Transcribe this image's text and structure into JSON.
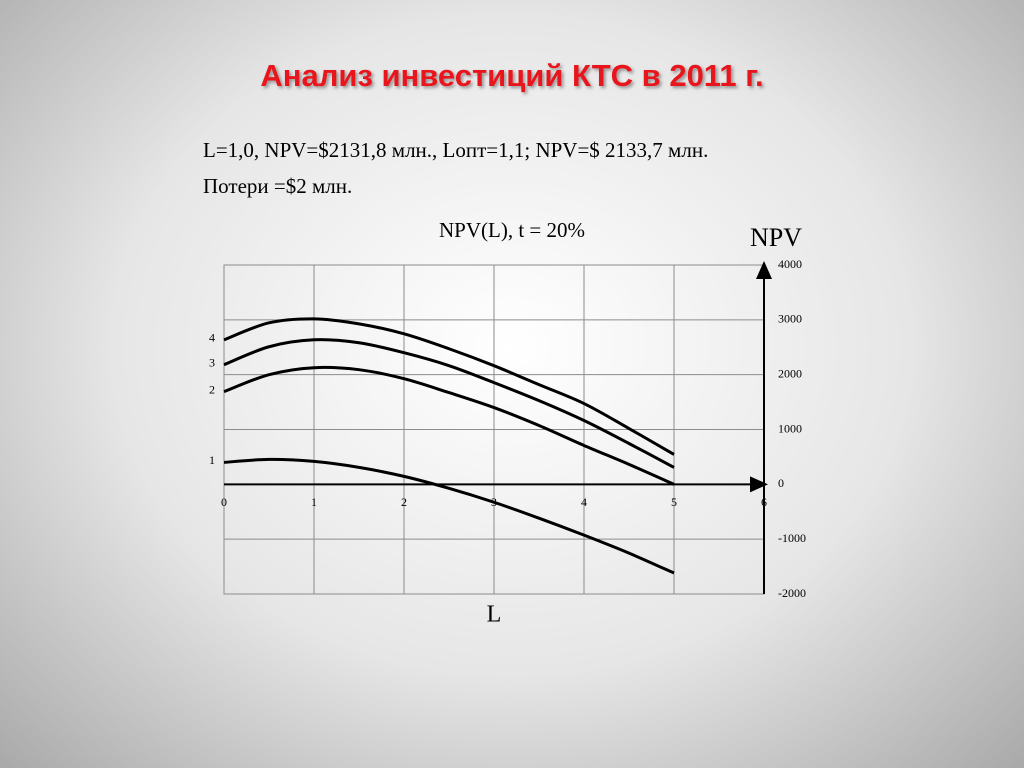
{
  "chart_data": {
    "type": "line",
    "slide_title": "Анализ инвестиций  КТС в 2011 г.",
    "annotations": [
      "L=1,0, NPV=$2131,8 млн., Lопт=1,1; NPV=$ 2133,7 млн.",
      "Потери =$2 млн."
    ],
    "title": "NPV(L), t = 20%",
    "x_label": "L",
    "y_label": "NPV",
    "x": [
      0,
      0.5,
      1,
      1.5,
      2,
      2.5,
      3,
      3.5,
      4,
      4.5,
      5
    ],
    "series": [
      {
        "name": "1",
        "color": "#000000",
        "values": [
          400,
          455,
          418,
          309,
          145,
          -73,
          -327,
          -618,
          -927,
          -1255,
          -1618
        ]
      },
      {
        "name": "2",
        "color": "#000000",
        "values": [
          1691,
          2000,
          2127,
          2091,
          1927,
          1673,
          1400,
          1073,
          709,
          364,
          0
        ]
      },
      {
        "name": "3",
        "color": "#000000",
        "values": [
          2182,
          2509,
          2636,
          2582,
          2400,
          2164,
          1855,
          1527,
          1164,
          745,
          309
        ]
      },
      {
        "name": "4",
        "color": "#000000",
        "values": [
          2636,
          2945,
          3018,
          2927,
          2745,
          2473,
          2164,
          1818,
          1473,
          1018,
          545
        ]
      }
    ],
    "xlim": [
      0,
      6
    ],
    "xticks": [
      0,
      1,
      2,
      3,
      4,
      5,
      6
    ],
    "ylim": [
      -2000,
      4000
    ],
    "yticks": [
      -2000,
      -1000,
      0,
      1000,
      2000,
      3000,
      4000
    ],
    "grid": true
  }
}
